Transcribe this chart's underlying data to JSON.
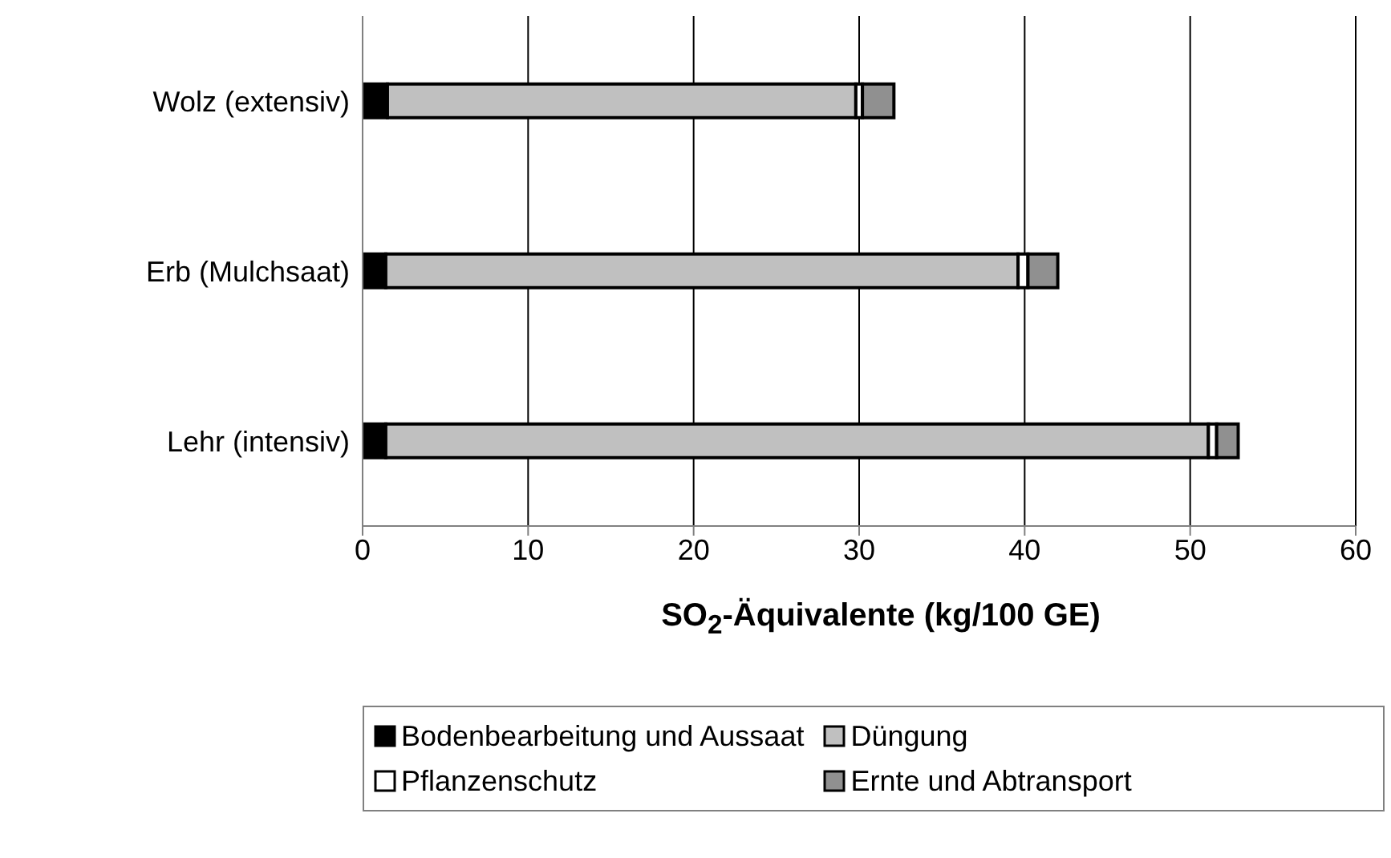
{
  "chart_data": {
    "type": "bar",
    "orientation": "horizontal",
    "stacked": true,
    "xlabel": "SO$_{2}$-Äquivalente (kg/100 GE)",
    "categories": [
      "Wolz (extensiv)",
      "Erb (Mulchsaat)",
      "Lehr (intensiv)"
    ],
    "series": [
      {
        "name": "Bodenbearbeitung und Aussaat",
        "color": "#000000",
        "values": [
          1.5,
          1.4,
          1.4
        ]
      },
      {
        "name": "Düngung",
        "color": "#c0c0c0",
        "values": [
          28.3,
          38.2,
          49.7
        ]
      },
      {
        "name": "Pflanzenschutz",
        "color": "#ffffff",
        "values": [
          0.4,
          0.6,
          0.5
        ]
      },
      {
        "name": "Ernte und Abtransport",
        "color": "#909090",
        "values": [
          1.9,
          1.8,
          1.3
        ]
      }
    ],
    "xlim": [
      0,
      60
    ],
    "xticks": [
      0,
      10,
      20,
      30,
      40,
      50,
      60
    ],
    "grid": "x",
    "legend": "bottom"
  }
}
